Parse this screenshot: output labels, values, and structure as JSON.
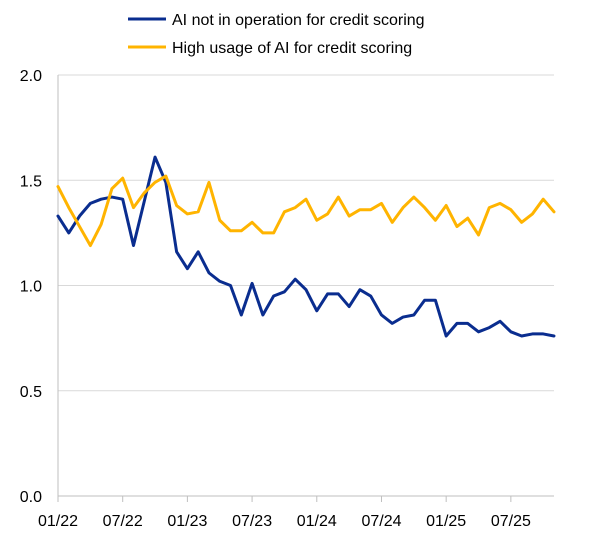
{
  "chart_data": {
    "type": "line",
    "title": "",
    "xlabel": "",
    "ylabel": "",
    "ylim": [
      0.0,
      2.0
    ],
    "yticks": [
      "0.0",
      "0.5",
      "1.0",
      "1.5",
      "2.0"
    ],
    "xticks": [
      "01/22",
      "07/22",
      "01/23",
      "07/23",
      "01/24",
      "07/24",
      "01/25",
      "07/25"
    ],
    "grid": "horizontal",
    "legend_position": "top-left",
    "x": [
      "01/22",
      "02/22",
      "03/22",
      "04/22",
      "05/22",
      "06/22",
      "07/22",
      "08/22",
      "09/22",
      "10/22",
      "11/22",
      "12/22",
      "01/23",
      "02/23",
      "03/23",
      "04/23",
      "05/23",
      "06/23",
      "07/23",
      "08/23",
      "09/23",
      "10/23",
      "11/23",
      "12/23",
      "01/24",
      "02/24",
      "03/24",
      "04/24",
      "05/24",
      "06/24",
      "07/24",
      "08/24",
      "09/24",
      "10/24",
      "11/24",
      "12/24",
      "01/25",
      "02/25",
      "03/25",
      "04/25",
      "05/25",
      "06/25",
      "07/25",
      "08/25",
      "09/25",
      "10/25",
      "11/25"
    ],
    "series": [
      {
        "name": "AI not in operation for credit scoring",
        "color": "#0a2d8f",
        "values": [
          1.33,
          1.25,
          1.33,
          1.39,
          1.41,
          1.42,
          1.41,
          1.19,
          1.4,
          1.61,
          1.49,
          1.16,
          1.08,
          1.16,
          1.06,
          1.02,
          1.0,
          0.86,
          1.01,
          0.86,
          0.95,
          0.97,
          1.03,
          0.98,
          0.88,
          0.96,
          0.96,
          0.9,
          0.98,
          0.95,
          0.86,
          0.82,
          0.85,
          0.86,
          0.93,
          0.93,
          0.76,
          0.82,
          0.82,
          0.78,
          0.8,
          0.83,
          0.78,
          0.76,
          0.77,
          0.77,
          0.76
        ]
      },
      {
        "name": "High usage of AI for credit scoring",
        "color": "#ffb400",
        "values": [
          1.47,
          1.37,
          1.28,
          1.19,
          1.29,
          1.46,
          1.51,
          1.37,
          1.44,
          1.49,
          1.52,
          1.38,
          1.34,
          1.35,
          1.49,
          1.31,
          1.26,
          1.26,
          1.3,
          1.25,
          1.25,
          1.35,
          1.37,
          1.41,
          1.31,
          1.34,
          1.42,
          1.33,
          1.36,
          1.36,
          1.39,
          1.3,
          1.37,
          1.42,
          1.37,
          1.31,
          1.38,
          1.28,
          1.32,
          1.24,
          1.37,
          1.39,
          1.36,
          1.3,
          1.34,
          1.41,
          1.35
        ]
      }
    ]
  }
}
